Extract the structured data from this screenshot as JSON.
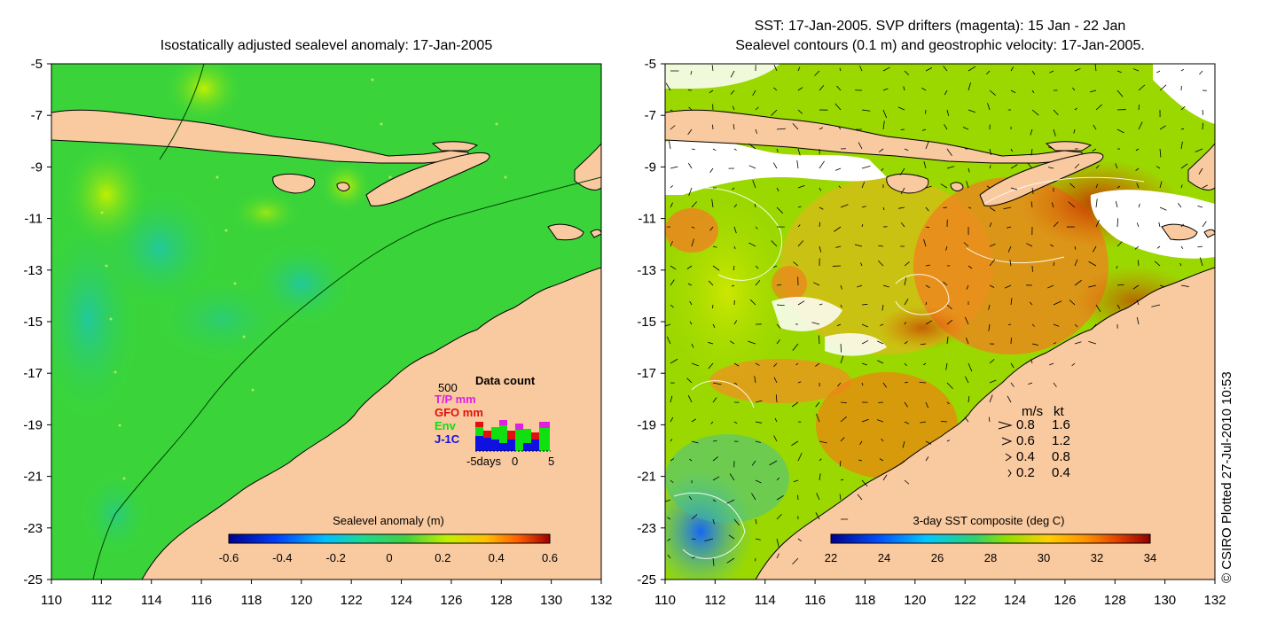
{
  "left_panel": {
    "title": "Isostatically adjusted sealevel anomaly: 17-Jan-2005",
    "x_ticks": [
      "110",
      "112",
      "114",
      "116",
      "118",
      "120",
      "122",
      "124",
      "126",
      "128",
      "130",
      "132"
    ],
    "y_ticks": [
      "-5",
      "-7",
      "-9",
      "-11",
      "-13",
      "-15",
      "-17",
      "-19",
      "-21",
      "-23",
      "-25"
    ],
    "colorbar": {
      "title": "Sealevel anomaly (m)",
      "ticks": [
        "-0.6",
        "-0.4",
        "-0.2",
        "0",
        "0.2",
        "0.4",
        "0.6"
      ]
    },
    "data_count": {
      "title": "Data count",
      "scale_label": "500",
      "legend": [
        {
          "label": "T/P mm",
          "color": "#e020e0"
        },
        {
          "label": "GFO mm",
          "color": "#e01010"
        },
        {
          "label": "Env",
          "color": "#10e010"
        },
        {
          "label": "J-1C",
          "color": "#1010e0"
        }
      ],
      "axis_labels": [
        "-5days",
        "0",
        "5"
      ]
    }
  },
  "right_panel": {
    "title_line1": "SST: 17-Jan-2005. SVP drifters (magenta): 15 Jan - 22 Jan",
    "title_line2": "Sealevel contours (0.1 m) and geostrophic velocity: 17-Jan-2005.",
    "x_ticks": [
      "110",
      "112",
      "114",
      "116",
      "118",
      "120",
      "122",
      "124",
      "126",
      "128",
      "130",
      "132"
    ],
    "y_ticks": [
      "-5",
      "-7",
      "-9",
      "-11",
      "-13",
      "-15",
      "-17",
      "-19",
      "-21",
      "-23",
      "-25"
    ],
    "colorbar": {
      "title": "3-day SST composite (deg C)",
      "ticks": [
        "22",
        "24",
        "26",
        "28",
        "30",
        "32",
        "34"
      ]
    },
    "velocity_legend": {
      "header_ms": "m/s",
      "header_kt": "kt",
      "rows": [
        {
          "ms": "0.8",
          "kt": "1.6"
        },
        {
          "ms": "0.6",
          "kt": "1.2"
        },
        {
          "ms": "0.4",
          "kt": "0.8"
        },
        {
          "ms": "0.2",
          "kt": "0.4"
        }
      ]
    }
  },
  "credit": "© CSIRO Plotted 27-Jul-2010 10:53",
  "colors": {
    "land": "#f9c99f",
    "sea_green": "#3ad43a",
    "sst_orange": "#f0a020"
  }
}
